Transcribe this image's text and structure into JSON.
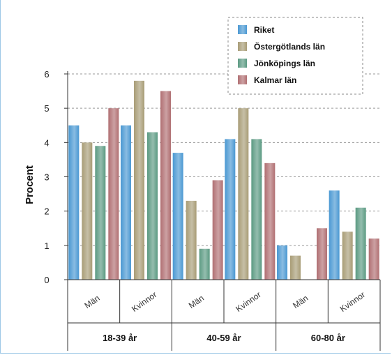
{
  "chart_data": {
    "type": "bar",
    "ylabel": "Procent",
    "ylim": [
      0,
      6
    ],
    "yticks": [
      "0",
      "1",
      "2",
      "3",
      "4",
      "5",
      "6"
    ],
    "grid": true,
    "legend_position": "top-right",
    "groups": [
      {
        "label": "18-39 år",
        "categories": [
          "Män",
          "Kvinnor"
        ]
      },
      {
        "label": "40-59 år",
        "categories": [
          "Män",
          "Kvinnor"
        ]
      },
      {
        "label": "60-80 år",
        "categories": [
          "Män",
          "Kvinnor"
        ]
      }
    ],
    "categories": [
      "Män",
      "Kvinnor",
      "Män",
      "Kvinnor",
      "Män",
      "Kvinnor"
    ],
    "series": [
      {
        "name": "Riket",
        "color": "#4a98d2",
        "values": [
          4.5,
          4.5,
          3.7,
          4.1,
          1.0,
          2.6
        ]
      },
      {
        "name": "Östergötlands län",
        "color": "#a89c76",
        "values": [
          4.0,
          5.8,
          2.3,
          5.0,
          0.7,
          1.4
        ]
      },
      {
        "name": "Jönköpings län",
        "color": "#5b9a82",
        "values": [
          3.9,
          4.3,
          0.9,
          4.1,
          0.0,
          2.1
        ]
      },
      {
        "name": "Kalmar län",
        "color": "#b06f72",
        "values": [
          5.0,
          5.5,
          2.9,
          3.4,
          1.5,
          1.2
        ]
      }
    ]
  }
}
